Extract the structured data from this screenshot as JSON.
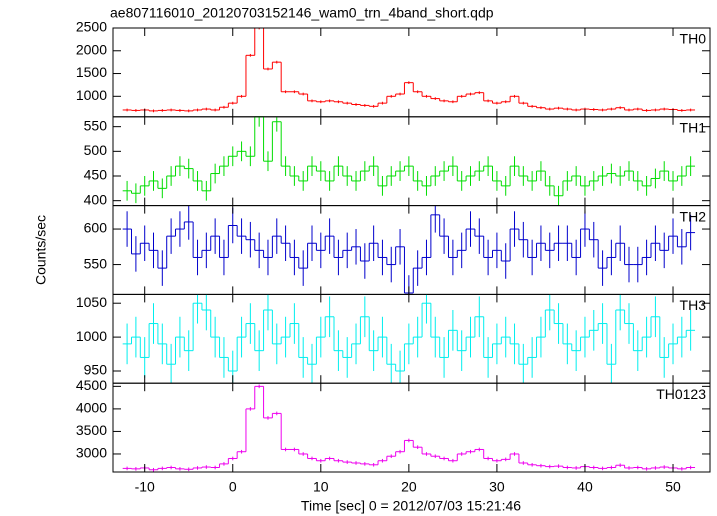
{
  "title": "ae807116010_20120703152146_wam0_trn_4band_short.qdp",
  "ylabel": "Counts/sec",
  "xlabel": "Time [sec] 0 = 2012/07/03 15:21:46",
  "xlim": [
    -13.6,
    54.2
  ],
  "xticks": [
    -10,
    0,
    10,
    20,
    30,
    40,
    50
  ],
  "x": [
    -12,
    -11,
    -10,
    -9,
    -8,
    -7,
    -6,
    -5,
    -4,
    -3,
    -2,
    -1,
    0,
    1,
    2,
    3,
    4,
    5,
    6,
    7,
    8,
    9,
    10,
    11,
    12,
    13,
    14,
    15,
    16,
    17,
    18,
    19,
    20,
    21,
    22,
    23,
    24,
    25,
    26,
    27,
    28,
    29,
    30,
    31,
    32,
    33,
    34,
    35,
    36,
    37,
    38,
    39,
    40,
    41,
    42,
    43,
    44,
    45,
    46,
    47,
    48,
    49,
    50,
    51,
    52
  ],
  "chart_data": [
    {
      "type": "step",
      "name": "TH0",
      "color": "#ff0000",
      "ylim": [
        550,
        2500
      ],
      "yticks": [
        1000,
        1500,
        2000,
        2500
      ],
      "yerr": 30,
      "values": [
        700,
        690,
        700,
        680,
        690,
        700,
        690,
        680,
        700,
        720,
        700,
        760,
        850,
        1000,
        1900,
        2500,
        1600,
        1750,
        1100,
        1100,
        1050,
        900,
        880,
        900,
        880,
        850,
        820,
        800,
        780,
        850,
        1000,
        1050,
        1300,
        1100,
        1000,
        950,
        900,
        880,
        1000,
        1050,
        1080,
        900,
        850,
        880,
        1000,
        850,
        780,
        750,
        720,
        740,
        720,
        700,
        720,
        710,
        700,
        720,
        750,
        700,
        720,
        690,
        700,
        720,
        710,
        690,
        700
      ]
    },
    {
      "type": "step",
      "name": "TH1",
      "color": "#00dd00",
      "ylim": [
        390,
        570
      ],
      "yticks": [
        400,
        450,
        500,
        550
      ],
      "yerr": 20,
      "values": [
        420,
        415,
        430,
        440,
        425,
        450,
        470,
        465,
        440,
        420,
        455,
        470,
        490,
        500,
        490,
        570,
        480,
        560,
        470,
        450,
        440,
        470,
        460,
        440,
        470,
        450,
        440,
        460,
        470,
        430,
        450,
        460,
        470,
        440,
        430,
        450,
        460,
        470,
        440,
        450,
        460,
        470,
        440,
        430,
        470,
        450,
        440,
        460,
        430,
        410,
        440,
        450,
        430,
        440,
        450,
        455,
        450,
        460,
        440,
        430,
        445,
        460,
        440,
        450,
        470
      ]
    },
    {
      "type": "step",
      "name": "TH2",
      "color": "#0000cc",
      "ylim": [
        508,
        633
      ],
      "yticks": [
        550,
        600
      ],
      "yerr": 25,
      "values": [
        600,
        565,
        580,
        570,
        545,
        590,
        600,
        610,
        560,
        570,
        590,
        560,
        605,
        590,
        585,
        570,
        560,
        590,
        580,
        560,
        545,
        580,
        570,
        590,
        560,
        570,
        575,
        555,
        580,
        560,
        550,
        575,
        510,
        545,
        560,
        620,
        590,
        560,
        570,
        600,
        590,
        560,
        570,
        555,
        600,
        585,
        560,
        580,
        570,
        580,
        580,
        560,
        600,
        585,
        545,
        560,
        580,
        550,
        550,
        560,
        580,
        570,
        590,
        575,
        595
      ]
    },
    {
      "type": "step",
      "name": "TH3",
      "color": "#00eeee",
      "ylim": [
        932,
        1063
      ],
      "yticks": [
        950,
        1000,
        1050
      ],
      "yerr": 30,
      "values": [
        990,
        1000,
        970,
        1020,
        990,
        960,
        1000,
        980,
        1050,
        1040,
        1000,
        970,
        950,
        1000,
        1020,
        980,
        1040,
        990,
        1000,
        1020,
        970,
        960,
        1000,
        1030,
        980,
        970,
        990,
        1030,
        980,
        1000,
        960,
        950,
        990,
        1000,
        1050,
        1000,
        970,
        1010,
        980,
        1000,
        1030,
        970,
        990,
        1000,
        990,
        960,
        970,
        1000,
        1040,
        1020,
        990,
        980,
        1000,
        1010,
        1020,
        960,
        1040,
        1020,
        980,
        1000,
        1030,
        970,
        990,
        1000,
        1010
      ]
    },
    {
      "type": "step",
      "name": "TH0123",
      "color": "#ee00ee",
      "ylim": [
        2600,
        4570
      ],
      "yticks": [
        3000,
        3500,
        4000,
        4500
      ],
      "yerr": 40,
      "values": [
        2680,
        2670,
        2690,
        2650,
        2680,
        2700,
        2670,
        2660,
        2690,
        2710,
        2700,
        2780,
        2900,
        3050,
        4000,
        4500,
        3800,
        3900,
        3100,
        3100,
        3000,
        2900,
        2850,
        2900,
        2850,
        2820,
        2800,
        2780,
        2760,
        2850,
        2950,
        3050,
        3300,
        3150,
        3000,
        2950,
        2900,
        2850,
        3000,
        3050,
        3100,
        2900,
        2850,
        2880,
        3000,
        2800,
        2760,
        2740,
        2720,
        2730,
        2700,
        2690,
        2720,
        2700,
        2680,
        2700,
        2750,
        2690,
        2700,
        2670,
        2690,
        2710,
        2690,
        2670,
        2700
      ]
    }
  ]
}
